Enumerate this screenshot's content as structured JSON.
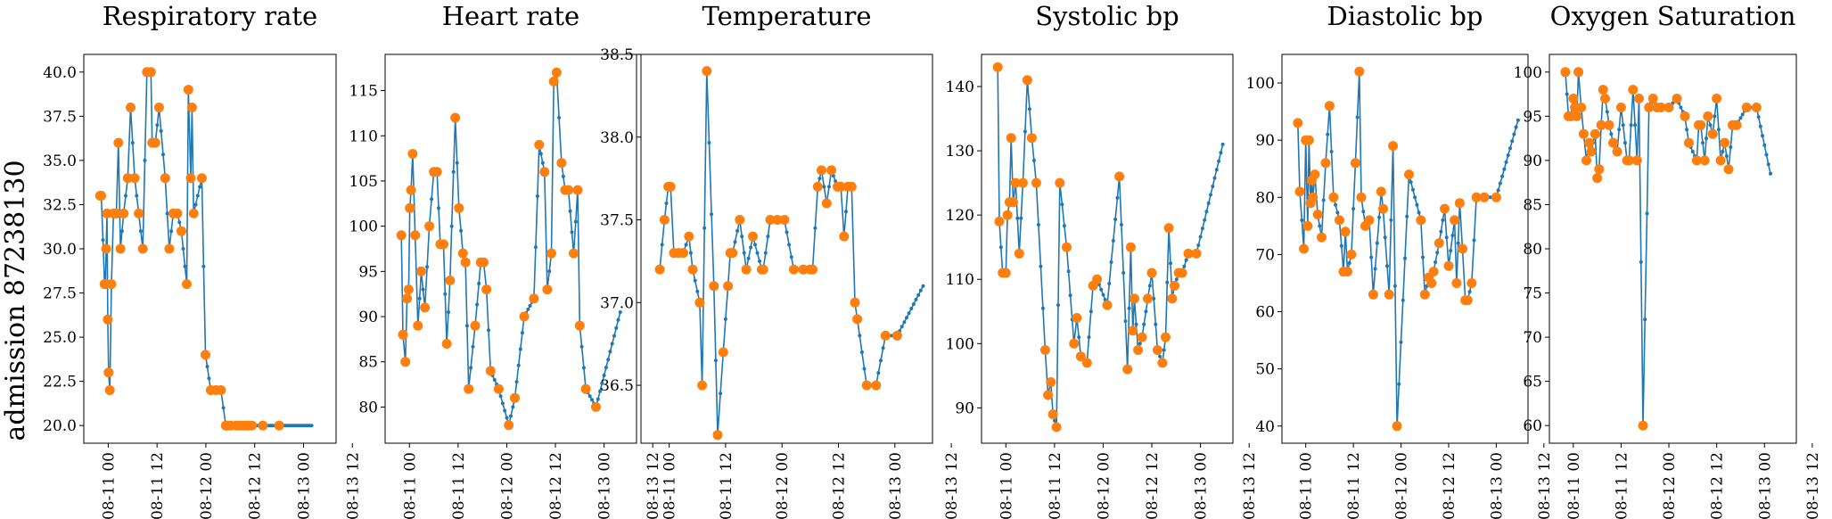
{
  "row_label": "admission 87238130",
  "colors": {
    "line": "#1f77b4",
    "marker": "#ff7f0e"
  },
  "x_ticks": [
    "08-11 00",
    "08-11 12",
    "08-12 00",
    "08-12 12",
    "08-13 00",
    "08-13 12"
  ],
  "chart_data": [
    {
      "type": "line",
      "title": "Respiratory rate",
      "ylim": [
        19.0,
        41.0
      ],
      "yticks": [
        "20.0",
        "22.5",
        "25.0",
        "27.5",
        "30.0",
        "32.5",
        "35.0",
        "37.5",
        "40.0"
      ],
      "ytick_values": [
        20.0,
        22.5,
        25.0,
        27.5,
        30.0,
        32.5,
        35.0,
        37.5,
        40.0
      ],
      "measured_x": [
        -2,
        -1.7,
        -0.9,
        -0.7,
        -0.5,
        -0.3,
        -0.1,
        0.1,
        0.4,
        0.8,
        1.3,
        2.0,
        2.5,
        3.0,
        3.8,
        4.8,
        5.5,
        6.5,
        7.5,
        8.5,
        9.5,
        10.5,
        10.8,
        11.2,
        11.6,
        12.5,
        14.0,
        15.0,
        16.0,
        17.0,
        18.0,
        19.3,
        19.7,
        20.3,
        20.6,
        21.0,
        23.0,
        23.9,
        25.2,
        26.5,
        27.7,
        28.9,
        29.1,
        29.4,
        30.1,
        31.4,
        32.0,
        32.5,
        33.3,
        33.8,
        34.4,
        35.3,
        38.0,
        42.0
      ],
      "measured_y": [
        33,
        33,
        28,
        28,
        30,
        32,
        26,
        23,
        22,
        28,
        32,
        32,
        36,
        30,
        32,
        34,
        38,
        34,
        32,
        30,
        40,
        40,
        36,
        36,
        36,
        38,
        34,
        30,
        32,
        32,
        31,
        28,
        39,
        34,
        38,
        32,
        34,
        24,
        22,
        22,
        22,
        20,
        20,
        20,
        20,
        20,
        20,
        20,
        20,
        20,
        20,
        20,
        20,
        20
      ],
      "end_x": 50,
      "end_y": 20
    },
    {
      "type": "line",
      "title": "Heart rate",
      "ylim": [
        76.0,
        119.0
      ],
      "yticks": [
        "80",
        "85",
        "90",
        "95",
        "100",
        "105",
        "110",
        "115"
      ],
      "ytick_values": [
        80,
        85,
        90,
        95,
        100,
        105,
        110,
        115
      ],
      "measured_x": [
        -2,
        -1.6,
        -1.0,
        -0.6,
        -0.2,
        0.1,
        0.4,
        0.8,
        1.4,
        2.1,
        2.9,
        3.8,
        4.9,
        6.0,
        6.8,
        7.6,
        8.4,
        9.2,
        10.0,
        11.3,
        12.2,
        13.2,
        13.8,
        14.6,
        16.2,
        17.6,
        18.3,
        19.0,
        20.0,
        22.0,
        24.5,
        26.0,
        28.3,
        30.7,
        32.0,
        33.3,
        34.0,
        35.0,
        35.6,
        36.3,
        37.5,
        38.4,
        39.2,
        40.5,
        41.5,
        42.0,
        43.5,
        46.0
      ],
      "measured_y": [
        99,
        88,
        85,
        92,
        93,
        102,
        104,
        108,
        99,
        89,
        95,
        91,
        100,
        106,
        106,
        98,
        98,
        87,
        94,
        112,
        102,
        97,
        96,
        82,
        89,
        96,
        96,
        93,
        84,
        82,
        78,
        81,
        90,
        92,
        109,
        106,
        93,
        97,
        116,
        117,
        107,
        104,
        104,
        97,
        104,
        89,
        82,
        80
      ],
      "end_x": 52,
      "end_y": 90.5
    },
    {
      "type": "line",
      "title": "Temperature",
      "ylim": [
        36.15,
        38.5
      ],
      "yticks": [
        "36.5",
        "37.0",
        "37.5",
        "38.0",
        "38.5"
      ],
      "ytick_values": [
        36.5,
        37.0,
        37.5,
        38.0,
        38.5
      ],
      "measured_x": [
        -2,
        -1.0,
        -0.2,
        0.3,
        1.0,
        2.0,
        3.0,
        4.2,
        5.0,
        6.5,
        7.0,
        8.0,
        9.5,
        10.3,
        11.5,
        12.5,
        13.0,
        13.5,
        15.0,
        16.4,
        17.8,
        19.7,
        20.0,
        21.5,
        23.0,
        24.5,
        26.5,
        28.5,
        30.0,
        30.5,
        31.6,
        32.4,
        33.5,
        34.5,
        35.8,
        36.5,
        37.2,
        38.0,
        38.8,
        39.5,
        40.0,
        42.0,
        44.0,
        46.0,
        48.5
      ],
      "measured_y": [
        37.2,
        37.5,
        37.7,
        37.7,
        37.3,
        37.3,
        37.3,
        37.4,
        37.2,
        37.0,
        36.5,
        38.4,
        37.1,
        36.2,
        36.7,
        37.1,
        37.3,
        37.3,
        37.5,
        37.2,
        37.4,
        37.2,
        37.2,
        37.5,
        37.5,
        37.5,
        37.2,
        37.2,
        37.2,
        37.2,
        37.7,
        37.8,
        37.6,
        37.8,
        37.7,
        37.7,
        37.4,
        37.7,
        37.7,
        37.0,
        36.9,
        36.5,
        36.5,
        36.8,
        36.8
      ],
      "end_x": 54,
      "end_y": 37.1
    },
    {
      "type": "line",
      "title": "Systolic bp",
      "ylim": [
        84.5,
        145.0
      ],
      "yticks": [
        "90",
        "100",
        "110",
        "120",
        "130",
        "140"
      ],
      "ytick_values": [
        90,
        100,
        110,
        120,
        130,
        140
      ],
      "measured_x": [
        -2,
        -1.6,
        -0.8,
        0.0,
        0.4,
        0.9,
        1.3,
        1.8,
        2.4,
        3.3,
        4.2,
        5.3,
        6.4,
        7.5,
        9.7,
        10.4,
        11.1,
        11.6,
        12.5,
        13.3,
        15.0,
        16.8,
        17.5,
        18.5,
        20.0,
        21.5,
        22.5,
        25.0,
        28.0,
        30.0,
        30.8,
        31.3,
        31.7,
        32.6,
        33.6,
        35.0,
        36.0,
        37.4,
        38.6,
        39.4,
        40.2,
        41.0,
        41.6,
        42.6,
        43.5,
        45.0,
        47.0
      ],
      "measured_y": [
        143,
        119,
        111,
        111,
        120,
        122,
        132,
        122,
        125,
        114,
        125,
        141,
        132,
        125,
        99,
        92,
        94,
        89,
        87,
        125,
        115,
        100,
        104,
        98,
        97,
        109,
        110,
        106,
        126,
        96,
        115,
        102,
        107,
        99,
        101,
        107,
        111,
        99,
        97,
        101,
        118,
        107,
        109,
        111,
        111,
        114,
        114
      ],
      "end_x": 53.5,
      "end_y": 131
    },
    {
      "type": "line",
      "title": "Diastolic bp",
      "ylim": [
        37.0,
        105.0
      ],
      "yticks": [
        "40",
        "50",
        "60",
        "70",
        "80",
        "90",
        "100"
      ],
      "ytick_values": [
        40,
        50,
        60,
        70,
        80,
        90,
        100
      ],
      "measured_x": [
        -2,
        -1.5,
        -0.5,
        0.0,
        0.5,
        0.8,
        1.2,
        1.5,
        1.8,
        2.3,
        3.0,
        4.0,
        5.0,
        6.0,
        7.0,
        8.5,
        9.5,
        10.0,
        10.5,
        11.5,
        12.5,
        13.5,
        14.0,
        15.0,
        16.0,
        17.0,
        19.0,
        19.5,
        21.0,
        22.0,
        23.0,
        26.0,
        29.0,
        30.0,
        31.0,
        31.7,
        32.2,
        33.6,
        35.0,
        36.0,
        37.5,
        38.0,
        38.8,
        39.5,
        40.2,
        40.8,
        41.8,
        43.0,
        45.0,
        48.0
      ],
      "measured_y": [
        93,
        81,
        71,
        90,
        75,
        90,
        79,
        83,
        80,
        84,
        77,
        73,
        86,
        96,
        80,
        76,
        67,
        74,
        67,
        70,
        86,
        102,
        80,
        75,
        76,
        63,
        81,
        78,
        63,
        89,
        40,
        84,
        76,
        63,
        66,
        65,
        67,
        72,
        78,
        68,
        76,
        65,
        79,
        71,
        62,
        62,
        65,
        80,
        80,
        80
      ],
      "end_x": 53.5,
      "end_y": 93.5
    },
    {
      "type": "line",
      "title": "Oxygen Saturation",
      "ylim": [
        58.0,
        102.0
      ],
      "yticks": [
        "60",
        "65",
        "70",
        "75",
        "80",
        "85",
        "90",
        "95",
        "100"
      ],
      "ytick_values": [
        60,
        65,
        70,
        75,
        80,
        85,
        90,
        95,
        100
      ],
      "measured_x": [
        -2,
        -1.2,
        -0.6,
        0.0,
        0.4,
        0.9,
        1.3,
        2.0,
        2.6,
        3.3,
        4.0,
        4.5,
        5.5,
        6.0,
        6.5,
        7.0,
        7.5,
        8.0,
        9.0,
        10.0,
        11.0,
        12.0,
        13.5,
        14.0,
        15.0,
        16.0,
        16.5,
        17.5,
        19.0,
        20.0,
        21.0,
        22.0,
        24.0,
        26.0,
        28.0,
        29.0,
        31.0,
        31.5,
        32.0,
        33.0,
        33.8,
        35.0,
        36.0,
        37.0,
        38.0,
        39.0,
        40.0,
        41.0,
        43.5,
        46.0
      ],
      "measured_y": [
        100,
        95,
        95,
        97,
        96,
        95,
        100,
        96,
        93,
        90,
        92,
        91,
        93,
        88,
        89,
        94,
        98,
        97,
        94,
        92,
        91,
        96,
        90,
        90,
        98,
        90,
        97,
        60,
        96,
        97,
        96,
        96,
        96,
        97,
        95,
        92,
        90,
        94,
        94,
        90,
        95,
        93,
        97,
        90,
        92,
        89,
        94,
        94,
        96,
        96
      ],
      "end_x": 49.5,
      "end_y": 88.5
    }
  ]
}
